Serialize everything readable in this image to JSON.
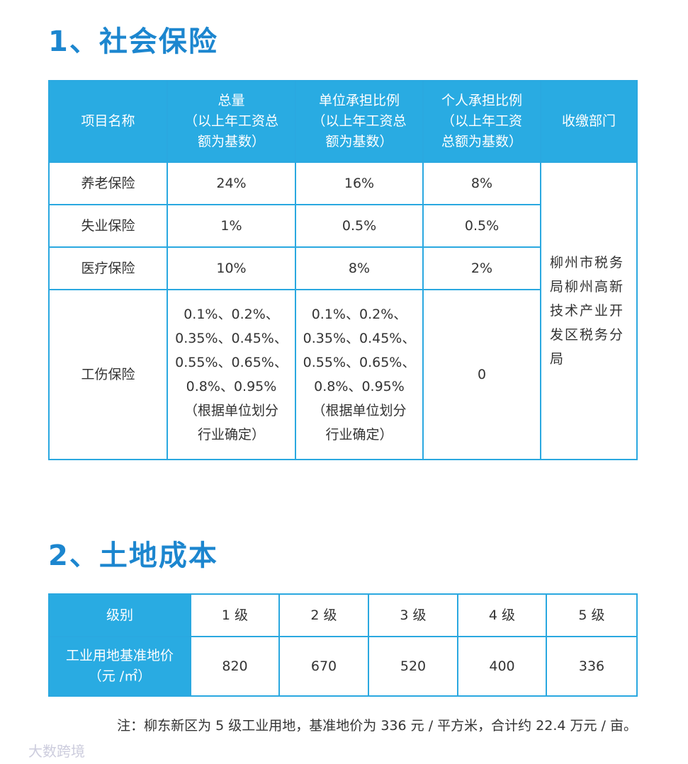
{
  "section1": {
    "title": "1、社会保险",
    "table": {
      "headers": [
        "项目名称",
        "总量\n（以上年工资总\n额为基数）",
        "单位承担比例\n（以上年工资总\n额为基数）",
        "个人承担比例\n（以上年工资\n总额为基数）",
        "收缴部门"
      ],
      "rows": [
        [
          "养老保险",
          "24%",
          "16%",
          "8%"
        ],
        [
          "失业保险",
          "1%",
          "0.5%",
          "0.5%"
        ],
        [
          "医疗保险",
          "10%",
          "8%",
          "2%"
        ],
        [
          "工伤保险",
          "0.1%、0.2%、\n0.35%、0.45%、\n0.55%、0.65%、\n0.8%、0.95%\n（根据单位划分\n行业确定）",
          "0.1%、0.2%、\n0.35%、0.45%、\n0.55%、0.65%、\n0.8%、0.95%\n（根据单位划分\n行业确定）",
          "0"
        ]
      ],
      "department": "柳州市税务局柳州高新技术产业开发区税务分局"
    }
  },
  "section2": {
    "title": "2、土地成本",
    "table": {
      "header": [
        "级别",
        "1 级",
        "2 级",
        "3 级",
        "4 级",
        "5 级"
      ],
      "row": [
        "工业用地基准地价\n（元 /㎡）",
        "820",
        "670",
        "520",
        "400",
        "336"
      ]
    },
    "note": "注：柳东新区为 5 级工业用地，基准地价为 336 元 / 平方米，合计约 22.4 万元 / 亩。"
  },
  "watermark": "大数跨境"
}
